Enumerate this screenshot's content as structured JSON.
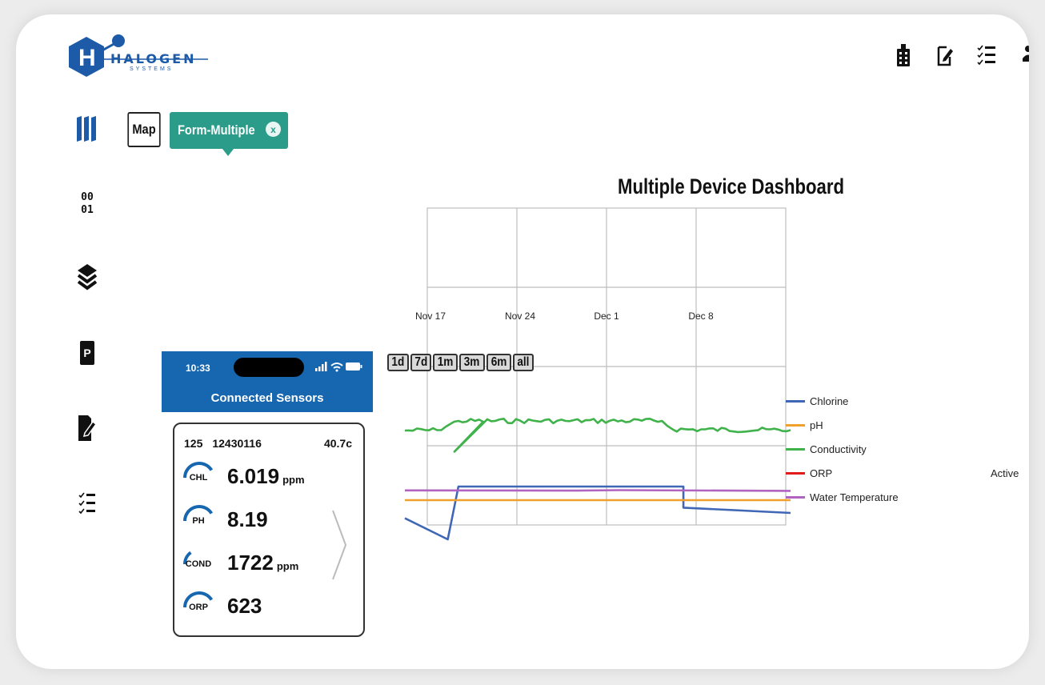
{
  "logo": {
    "letter": "H",
    "word": "HALOGEN",
    "sub": "SYSTEMS"
  },
  "top_icons": [
    "sensor-device-icon",
    "edit-note-icon",
    "checklist-icon",
    "users-icon"
  ],
  "sidebar_icons": [
    "bars-icon",
    "binary-grid-icon",
    "layers-icon",
    "p-tag-icon",
    "edit-document-icon",
    "checklist-icon"
  ],
  "sidebar_text": {
    "binary_top": "00",
    "binary_bottom": "01",
    "p": "P"
  },
  "tabs": {
    "map": "Map",
    "form_multiple": "Form-Multiple",
    "close": "x"
  },
  "dashboard": {
    "title": "Multiple Device Dashboard"
  },
  "range_buttons": [
    "1d",
    "7d",
    "1m",
    "3m",
    "6m",
    "all"
  ],
  "active_label": "Active",
  "colors": {
    "accent": "#2b9c89",
    "header_blue": "#1766b0",
    "chlorine": "#3f67b6",
    "ph": "#f2a02c",
    "conductivity": "#3fb24a",
    "orp": "#e21a1a",
    "water_temperature": "#b064c0"
  },
  "chart_data": {
    "type": "line",
    "x_ticks": [
      "Nov 17",
      "Nov 24",
      "Dec 1",
      "Dec 8"
    ],
    "legend_placement": "right",
    "grid": true,
    "series": [
      {
        "name": "Chlorine",
        "x": [
          "Nov 14",
          "Nov 18",
          "Nov 19",
          "Dec 10",
          "Dec 10",
          "Dec 20"
        ],
        "values": [
          0.4,
          0.0,
          1.0,
          1.0,
          0.6,
          0.5
        ]
      },
      {
        "name": "pH",
        "x": [
          "Nov 14",
          "Dec 20"
        ],
        "values": [
          0.5,
          0.5
        ]
      },
      {
        "name": "Conductivity",
        "x": [
          "Nov 14",
          "Nov 17",
          "Nov 19",
          "Nov 29",
          "Dec 8",
          "Dec 9",
          "Dec 20"
        ],
        "values": [
          0.75,
          0.76,
          1.0,
          1.0,
          1.0,
          0.78,
          0.76
        ]
      },
      {
        "name": "ORP",
        "x": [],
        "values": []
      },
      {
        "name": "Water Temperature",
        "x": [
          "Nov 14",
          "Nov 30",
          "Dec 4",
          "Dec 20"
        ],
        "values": [
          0.7,
          0.68,
          0.72,
          0.66
        ]
      }
    ]
  },
  "phone": {
    "time": "10:33",
    "title": "Connected Sensors",
    "card": {
      "id": "125",
      "serial": "12430116",
      "temp": "40.7c",
      "readings": [
        {
          "label": "CHL",
          "value": "6.019",
          "unit": "ppm",
          "fill": 0.55
        },
        {
          "label": "PH",
          "value": "8.19",
          "unit": "",
          "fill": 0.55
        },
        {
          "label": "COND",
          "value": "1722",
          "unit": "ppm",
          "fill": 0.2
        },
        {
          "label": "ORP",
          "value": "623",
          "unit": "",
          "fill": 0.55
        }
      ]
    }
  }
}
